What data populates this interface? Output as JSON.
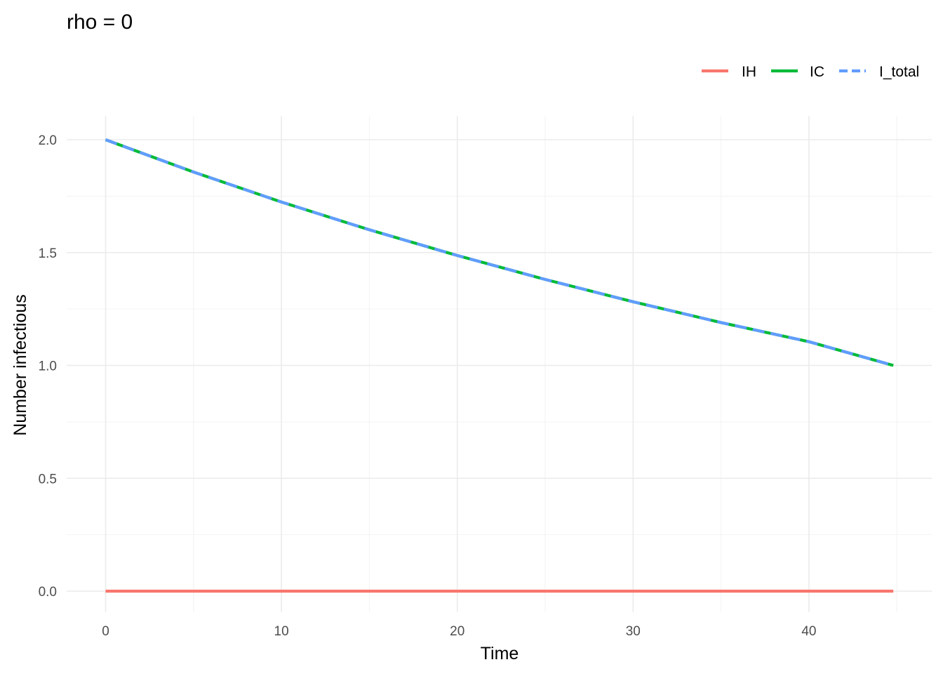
{
  "chart_data": {
    "type": "line",
    "title": "rho = 0",
    "xlabel": "Time",
    "ylabel": "Number infectious",
    "xlim": [
      0,
      44.8
    ],
    "ylim": [
      0,
      2.0
    ],
    "x_ticks": [
      0,
      10,
      20,
      30,
      40
    ],
    "y_ticks": [
      "0.0",
      "0.5",
      "1.0",
      "1.5",
      "2.0"
    ],
    "grid": true,
    "legend_position": "top-right",
    "x": [
      0,
      5,
      10,
      15,
      20,
      25,
      30,
      35,
      40,
      44.8
    ],
    "series": [
      {
        "name": "IH",
        "color": "#F8766D",
        "line": "solid",
        "values": [
          0,
          0,
          0,
          0,
          0,
          0,
          0,
          0,
          0,
          0
        ]
      },
      {
        "name": "IC",
        "color": "#00BA38",
        "line": "solid",
        "values": [
          2.0,
          1.857,
          1.724,
          1.601,
          1.487,
          1.381,
          1.282,
          1.19,
          1.105,
          1.0
        ]
      },
      {
        "name": "I_total",
        "color": "#619CFF",
        "line": "dashed",
        "values": [
          2.0,
          1.857,
          1.724,
          1.601,
          1.487,
          1.381,
          1.282,
          1.19,
          1.105,
          1.0
        ]
      }
    ]
  }
}
